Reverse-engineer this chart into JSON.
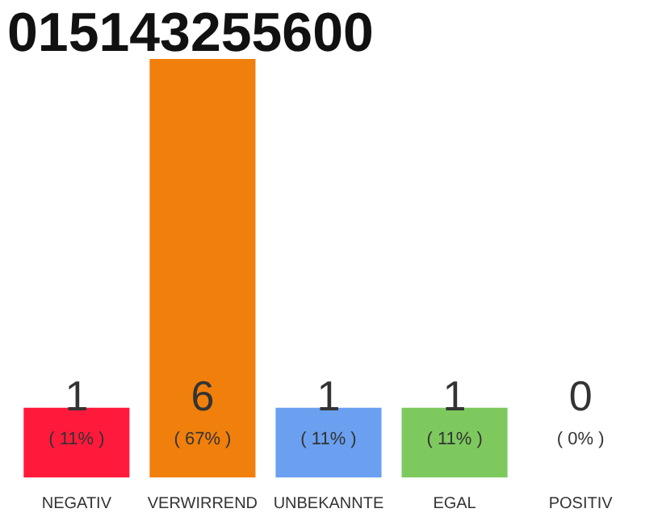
{
  "chart_data": {
    "type": "bar",
    "title": "015143255600",
    "categories": [
      "NEGATIV",
      "VERWIRREND",
      "UNBEKANNTE",
      "EGAL",
      "POSITIV"
    ],
    "values": [
      1,
      6,
      1,
      1,
      0
    ],
    "colors": [
      "#ff1a3c",
      "#f07f0c",
      "#6aa0ef",
      "#7dc95e",
      "#cccccc"
    ],
    "data_labels": true,
    "annotations": [
      "( 11% )",
      "( 67% )",
      "( 11% )",
      "( 11% )",
      "( 0% )"
    ],
    "grid": false
  }
}
